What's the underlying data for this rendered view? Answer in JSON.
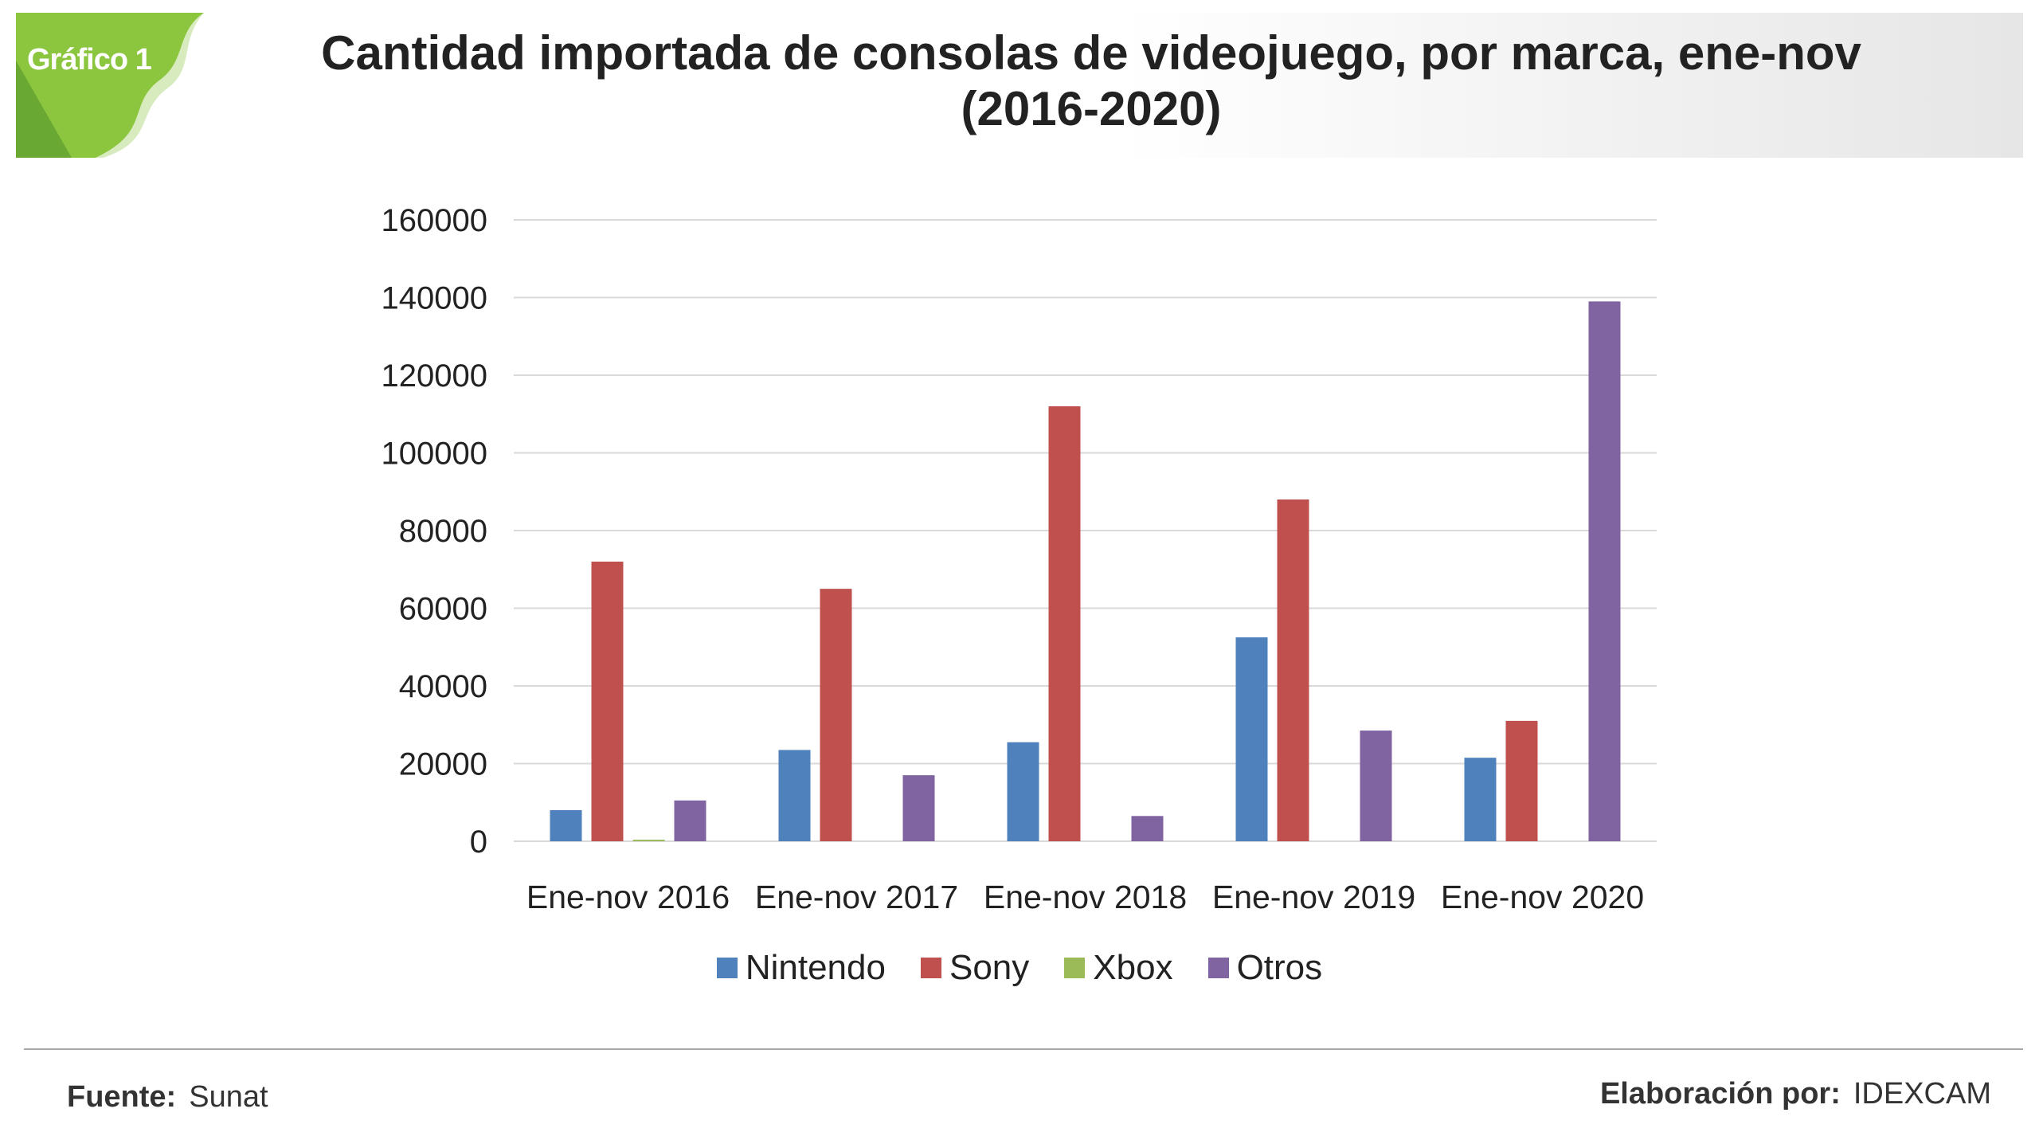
{
  "header": {
    "badge": "Gráfico 1",
    "title_line1": "Cantidad importada de consolas de videojuego, por marca, ene-nov",
    "title_line2": "(2016-2020)"
  },
  "chart_data": {
    "type": "bar",
    "title": "Cantidad importada de consolas de videojuego, por marca, ene-nov (2016-2020)",
    "categories": [
      "Ene-nov 2016",
      "Ene-nov 2017",
      "Ene-nov 2018",
      "Ene-nov 2019",
      "Ene-nov 2020"
    ],
    "series": [
      {
        "name": "Nintendo",
        "color": "#4f81bd",
        "values": [
          8000,
          23500,
          25500,
          52500,
          21500
        ]
      },
      {
        "name": "Sony",
        "color": "#c0504d",
        "values": [
          72000,
          65000,
          112000,
          88000,
          31000
        ]
      },
      {
        "name": "Xbox",
        "color": "#9bbb59",
        "values": [
          400,
          0,
          0,
          0,
          0
        ]
      },
      {
        "name": "Otros",
        "color": "#8064a2",
        "values": [
          10500,
          17000,
          6500,
          28500,
          139000
        ]
      }
    ],
    "ylim": [
      0,
      160000
    ],
    "yticks": [
      "0",
      "20000",
      "40000",
      "60000",
      "80000",
      "100000",
      "120000",
      "140000",
      "160000"
    ],
    "xlabel": "",
    "ylabel": "",
    "grid": true,
    "legend_position": "bottom"
  },
  "footer": {
    "source_label": "Fuente:",
    "source_value": "Sunat",
    "credit_label": "Elaboración por:",
    "credit_value": "IDEXCAM"
  }
}
